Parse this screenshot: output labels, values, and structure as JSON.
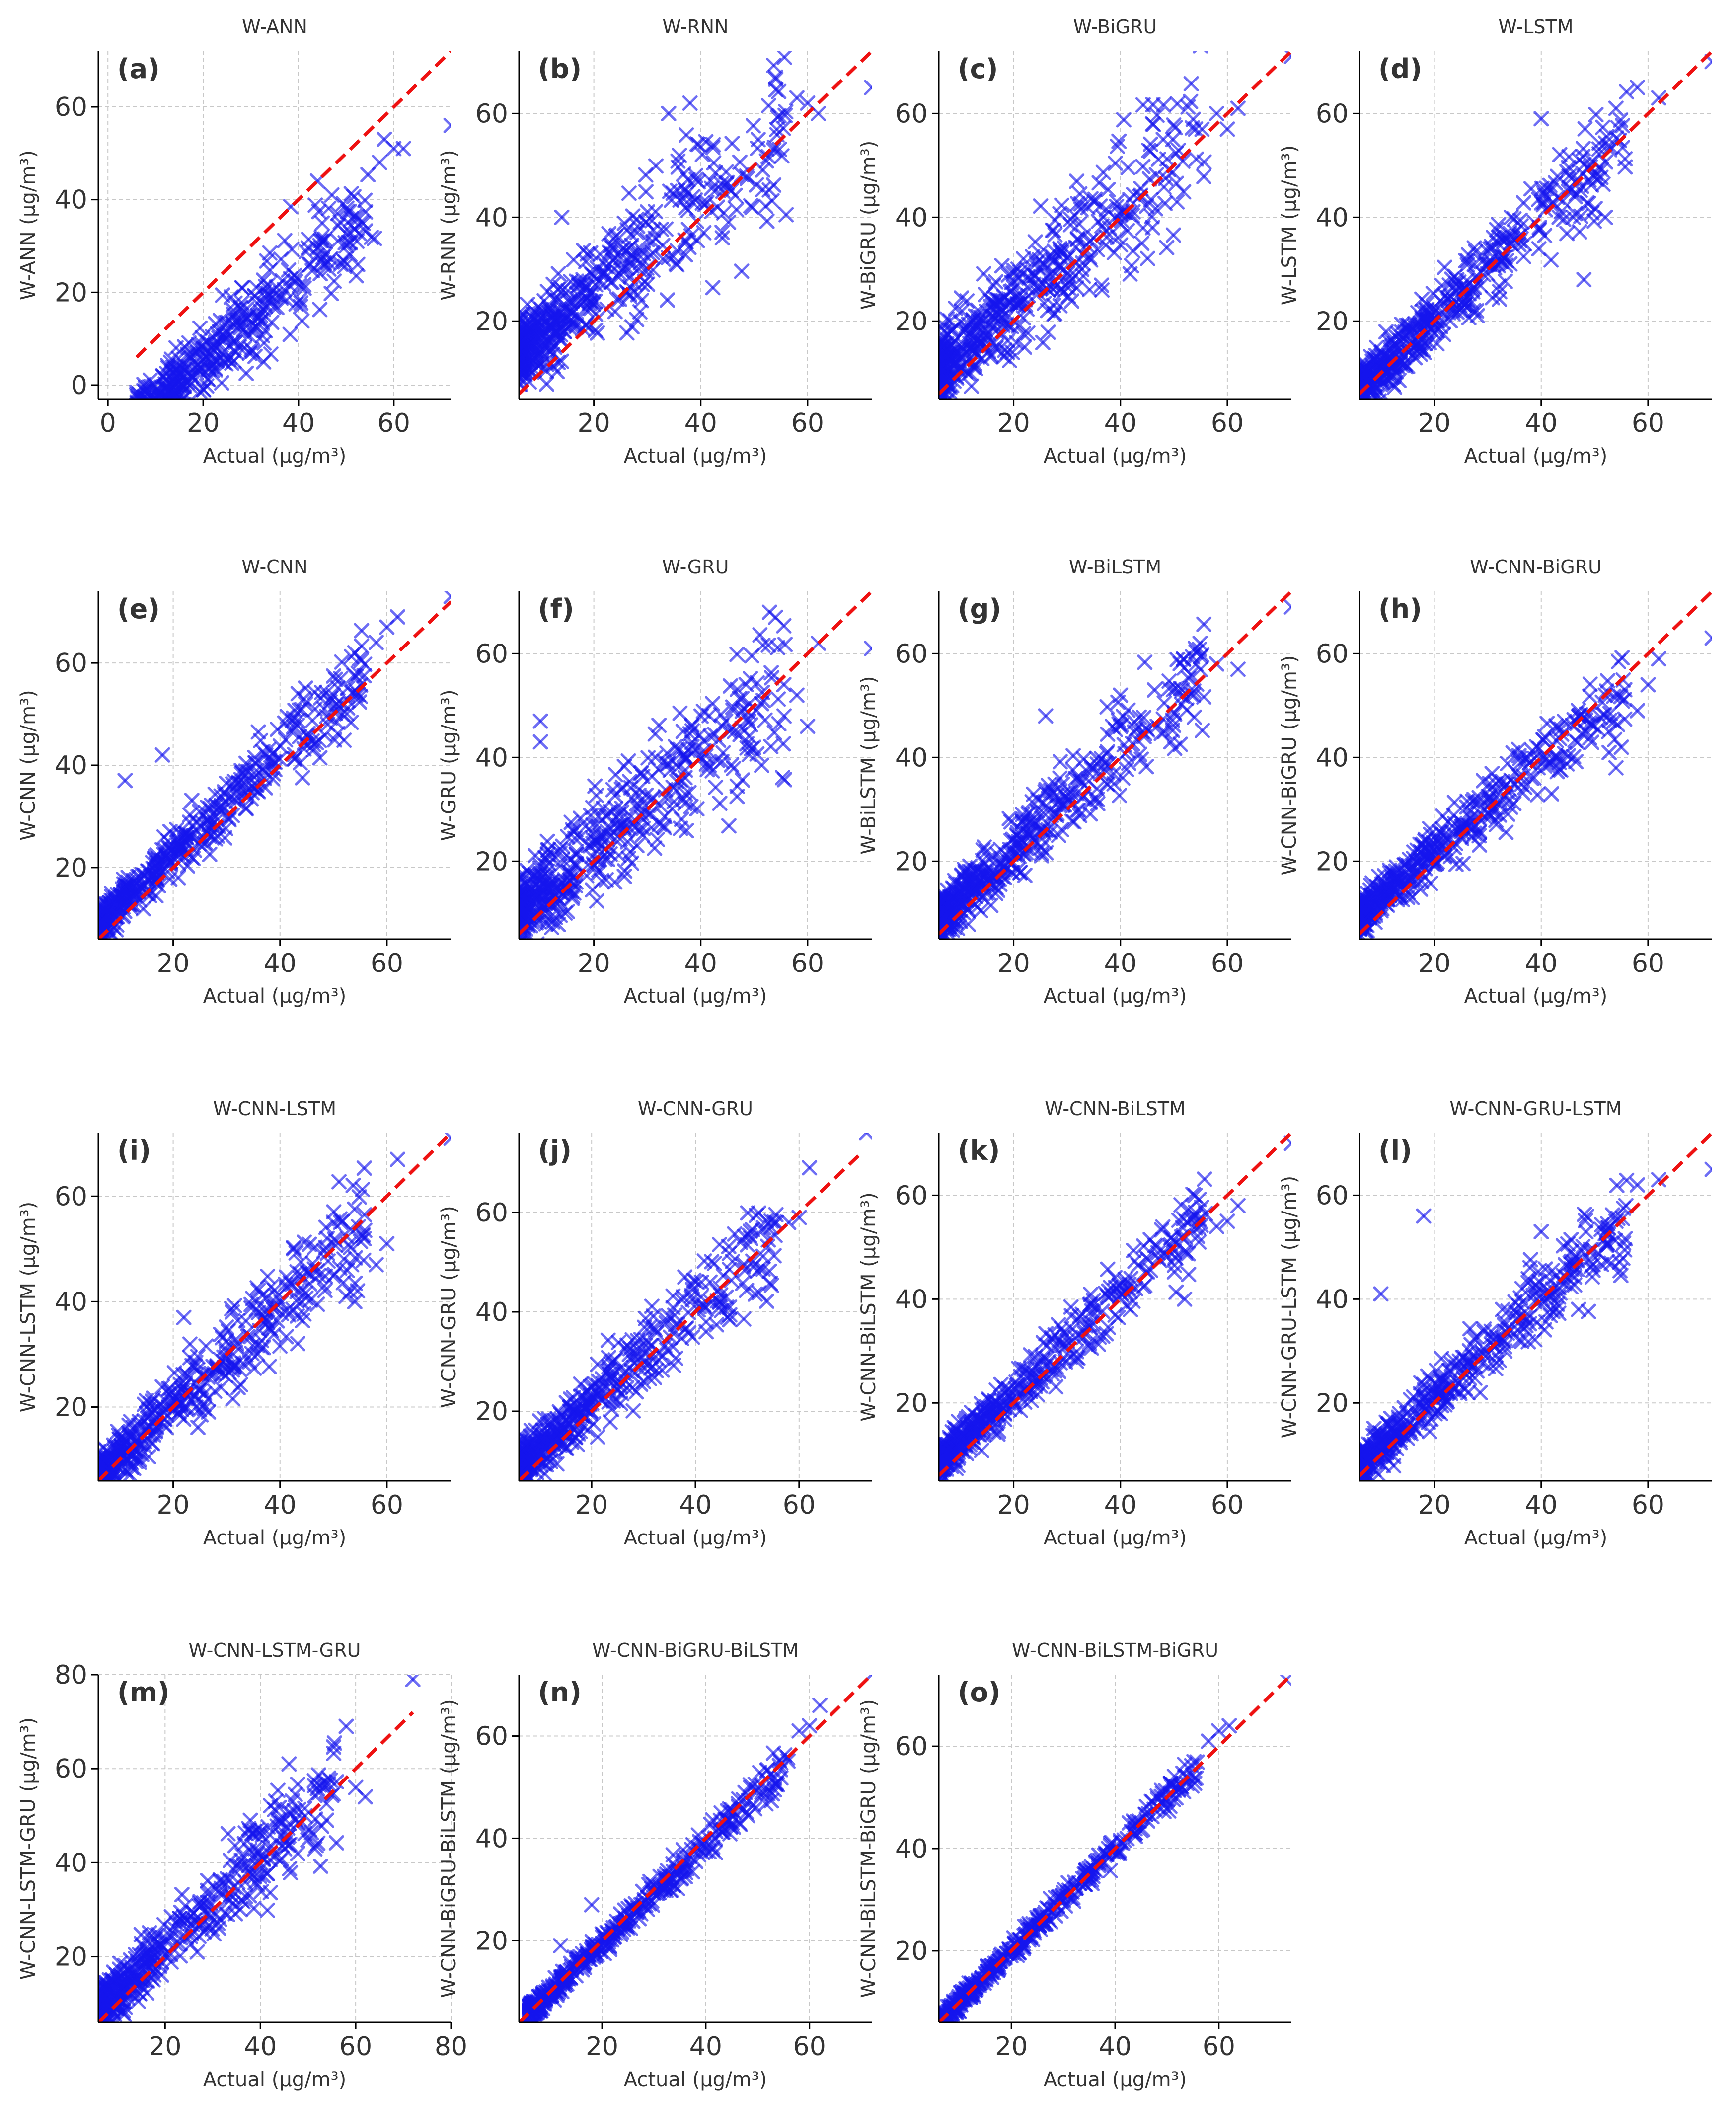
{
  "figure": {
    "marker": "x",
    "point_color": "#1515ee",
    "line_color": "#ee1111",
    "line_style": "dashed",
    "grid": true
  },
  "chart_data": [
    {
      "id": "a",
      "type": "scatter",
      "title": "W-ANN",
      "panel_label": "(a)",
      "xlabel": "Actual (µg/m³)",
      "ylabel": "W-ANN (µg/m³)",
      "xlim": [
        -2,
        72
      ],
      "ylim": [
        -3,
        72
      ],
      "xticks": [
        0,
        20,
        40,
        60
      ],
      "yticks": [
        0,
        20,
        40,
        60
      ],
      "ref_line": {
        "from": [
          6,
          6
        ],
        "to": [
          72,
          72
        ]
      },
      "noise": 5,
      "bias": -13,
      "scale": 0.92,
      "anchors": [
        [
          44,
          44
        ],
        [
          47,
          41
        ],
        [
          50,
          30
        ],
        [
          57,
          48
        ],
        [
          58,
          53
        ],
        [
          60,
          51
        ],
        [
          62,
          51
        ],
        [
          72,
          56
        ]
      ]
    },
    {
      "id": "b",
      "type": "scatter",
      "title": "W-RNN",
      "panel_label": "(b)",
      "xlabel": "Actual (µg/m³)",
      "ylabel": "W-RNN (µg/m³)",
      "xlim": [
        6,
        72
      ],
      "ylim": [
        5,
        72
      ],
      "xticks": [
        20,
        40,
        60
      ],
      "yticks": [
        20,
        40,
        60
      ],
      "ref_line": {
        "from": [
          6,
          6
        ],
        "to": [
          72,
          72
        ]
      },
      "noise": 6,
      "bias": 9,
      "scale": 0.85,
      "anchors": [
        [
          34,
          60
        ],
        [
          38,
          62
        ],
        [
          54,
          67
        ],
        [
          58,
          63
        ],
        [
          60,
          62
        ],
        [
          62,
          60
        ],
        [
          72,
          65
        ],
        [
          14,
          40
        ]
      ]
    },
    {
      "id": "c",
      "type": "scatter",
      "title": "W-BiGRU",
      "panel_label": "(c)",
      "xlabel": "Actual (µg/m³)",
      "ylabel": "W-BiGRU (µg/m³)",
      "xlim": [
        6,
        72
      ],
      "ylim": [
        5,
        72
      ],
      "xticks": [
        20,
        40,
        60
      ],
      "yticks": [
        20,
        40,
        60
      ],
      "ref_line": {
        "from": [
          6,
          6
        ],
        "to": [
          72,
          72
        ]
      },
      "noise": 6,
      "bias": 5,
      "scale": 0.93,
      "anchors": [
        [
          46,
          58
        ],
        [
          48,
          55
        ],
        [
          58,
          60
        ],
        [
          60,
          57
        ],
        [
          62,
          61
        ],
        [
          72,
          71
        ],
        [
          44,
          35
        ],
        [
          46,
          38
        ]
      ]
    },
    {
      "id": "d",
      "type": "scatter",
      "title": "W-LSTM",
      "panel_label": "(d)",
      "xlabel": "Actual (µg/m³)",
      "ylabel": "W-LSTM (µg/m³)",
      "xlim": [
        6,
        72
      ],
      "ylim": [
        5,
        72
      ],
      "xticks": [
        20,
        40,
        60
      ],
      "yticks": [
        20,
        40,
        60
      ],
      "ref_line": {
        "from": [
          6,
          6
        ],
        "to": [
          72,
          72
        ]
      },
      "noise": 4,
      "bias": 1,
      "scale": 0.97,
      "anchors": [
        [
          40,
          59
        ],
        [
          54,
          61
        ],
        [
          58,
          65
        ],
        [
          62,
          63
        ],
        [
          72,
          70
        ],
        [
          46,
          40
        ],
        [
          48,
          28
        ],
        [
          52,
          40
        ]
      ]
    },
    {
      "id": "e",
      "type": "scatter",
      "title": "W-CNN",
      "panel_label": "(e)",
      "xlabel": "Actual (µg/m³)",
      "ylabel": "W-CNN (µg/m³)",
      "xlim": [
        6,
        72
      ],
      "ylim": [
        6,
        74
      ],
      "xticks": [
        20,
        40,
        60
      ],
      "yticks": [
        20,
        40,
        60
      ],
      "ref_line": {
        "from": [
          6,
          6
        ],
        "to": [
          72,
          72
        ]
      },
      "noise": 3,
      "bias": 3,
      "scale": 0.98,
      "anchors": [
        [
          11,
          37
        ],
        [
          18,
          42
        ],
        [
          54,
          62
        ],
        [
          58,
          64
        ],
        [
          60,
          67
        ],
        [
          62,
          69
        ],
        [
          72,
          73
        ]
      ]
    },
    {
      "id": "f",
      "type": "scatter",
      "title": "W-GRU",
      "panel_label": "(f)",
      "xlabel": "Actual (µg/m³)",
      "ylabel": "W-GRU (µg/m³)",
      "xlim": [
        6,
        72
      ],
      "ylim": [
        5,
        72
      ],
      "xticks": [
        20,
        40,
        60
      ],
      "yticks": [
        20,
        40,
        60
      ],
      "ref_line": {
        "from": [
          6,
          6
        ],
        "to": [
          72,
          72
        ]
      },
      "noise": 6,
      "bias": 5,
      "scale": 0.88,
      "anchors": [
        [
          10,
          47
        ],
        [
          10,
          43
        ],
        [
          54,
          67
        ],
        [
          58,
          52
        ],
        [
          60,
          46
        ],
        [
          62,
          62
        ],
        [
          72,
          61
        ]
      ]
    },
    {
      "id": "g",
      "type": "scatter",
      "title": "W-BiLSTM",
      "panel_label": "(g)",
      "xlabel": "Actual (µg/m³)",
      "ylabel": "W-BiLSTM (µg/m³)",
      "xlim": [
        6,
        72
      ],
      "ylim": [
        5,
        72
      ],
      "xticks": [
        20,
        40,
        60
      ],
      "yticks": [
        20,
        40,
        60
      ],
      "ref_line": {
        "from": [
          6,
          6
        ],
        "to": [
          72,
          72
        ]
      },
      "noise": 4,
      "bias": 3,
      "scale": 0.95,
      "anchors": [
        [
          26,
          48
        ],
        [
          40,
          52
        ],
        [
          54,
          61
        ],
        [
          58,
          58
        ],
        [
          62,
          57
        ],
        [
          72,
          69
        ]
      ]
    },
    {
      "id": "h",
      "type": "scatter",
      "title": "W-CNN-BiGRU",
      "panel_label": "(h)",
      "xlabel": "Actual (µg/m³)",
      "ylabel": "W-CNN-BiGRU (µg/m³)",
      "xlim": [
        6,
        72
      ],
      "ylim": [
        5,
        72
      ],
      "xticks": [
        20,
        40,
        60
      ],
      "yticks": [
        20,
        40,
        60
      ],
      "ref_line": {
        "from": [
          6,
          6
        ],
        "to": [
          72,
          72
        ]
      },
      "noise": 3,
      "bias": 4,
      "scale": 0.88,
      "anchors": [
        [
          52,
          52
        ],
        [
          54,
          38
        ],
        [
          58,
          49
        ],
        [
          60,
          54
        ],
        [
          62,
          59
        ],
        [
          72,
          63
        ]
      ]
    },
    {
      "id": "i",
      "type": "scatter",
      "title": "W-CNN-LSTM",
      "panel_label": "(i)",
      "xlabel": "Actual (µg/m³)",
      "ylabel": "W-CNN-LSTM (µg/m³)",
      "xlim": [
        6,
        72
      ],
      "ylim": [
        6,
        72
      ],
      "xticks": [
        20,
        40,
        60
      ],
      "yticks": [
        20,
        40,
        60
      ],
      "ref_line": {
        "from": [
          6,
          6
        ],
        "to": [
          72,
          72
        ]
      },
      "noise": 4,
      "bias": 1,
      "scale": 0.97,
      "anchors": [
        [
          22,
          37
        ],
        [
          54,
          40
        ],
        [
          58,
          47
        ],
        [
          60,
          51
        ],
        [
          62,
          67
        ],
        [
          72,
          71
        ]
      ]
    },
    {
      "id": "j",
      "type": "scatter",
      "title": "W-CNN-GRU",
      "panel_label": "(j)",
      "xlabel": "Actual (µg/m³)",
      "ylabel": "W-CNN-GRU (µg/m³)",
      "xlim": [
        6,
        74
      ],
      "ylim": [
        6,
        76
      ],
      "xticks": [
        20,
        40,
        60
      ],
      "yticks": [
        20,
        40,
        60
      ],
      "ref_line": {
        "from": [
          6,
          6
        ],
        "to": [
          72,
          72
        ]
      },
      "noise": 4,
      "bias": 3,
      "scale": 0.93,
      "anchors": [
        [
          58,
          58
        ],
        [
          60,
          59
        ],
        [
          62,
          69
        ],
        [
          73,
          76
        ]
      ]
    },
    {
      "id": "k",
      "type": "scatter",
      "title": "W-CNN-BiLSTM",
      "panel_label": "(k)",
      "xlabel": "Actual (µg/m³)",
      "ylabel": "W-CNN-BiLSTM (µg/m³)",
      "xlim": [
        6,
        72
      ],
      "ylim": [
        5,
        72
      ],
      "xticks": [
        20,
        40,
        60
      ],
      "yticks": [
        20,
        40,
        60
      ],
      "ref_line": {
        "from": [
          6,
          6
        ],
        "to": [
          72,
          72
        ]
      },
      "noise": 3,
      "bias": 3,
      "scale": 0.95,
      "anchors": [
        [
          52,
          40
        ],
        [
          54,
          56
        ],
        [
          58,
          54
        ],
        [
          60,
          55
        ],
        [
          62,
          58
        ],
        [
          72,
          70
        ]
      ]
    },
    {
      "id": "l",
      "type": "scatter",
      "title": "W-CNN-GRU-LSTM",
      "panel_label": "(l)",
      "xlabel": "Actual (µg/m³)",
      "ylabel": "W-CNN-GRU-LSTM (µg/m³)",
      "xlim": [
        6,
        72
      ],
      "ylim": [
        5,
        72
      ],
      "xticks": [
        20,
        40,
        60
      ],
      "yticks": [
        20,
        40,
        60
      ],
      "ref_line": {
        "from": [
          6,
          6
        ],
        "to": [
          72,
          72
        ]
      },
      "noise": 3,
      "bias": 2,
      "scale": 0.95,
      "anchors": [
        [
          10,
          41
        ],
        [
          18,
          56
        ],
        [
          40,
          53
        ],
        [
          54,
          55
        ],
        [
          58,
          62
        ],
        [
          62,
          63
        ],
        [
          72,
          65
        ]
      ]
    },
    {
      "id": "m",
      "type": "scatter",
      "title": "W-CNN-LSTM-GRU",
      "panel_label": "(m)",
      "xlabel": "Actual (µg/m³)",
      "ylabel": "W-CNN-LSTM-GRU (µg/m³)",
      "xlim": [
        6,
        80
      ],
      "ylim": [
        6,
        80
      ],
      "xticks": [
        20,
        40,
        60,
        80
      ],
      "yticks": [
        20,
        40,
        60,
        80
      ],
      "ref_line": {
        "from": [
          6,
          6
        ],
        "to": [
          72,
          72
        ]
      },
      "noise": 4,
      "bias": 3,
      "scale": 0.95,
      "anchors": [
        [
          46,
          61
        ],
        [
          58,
          69
        ],
        [
          60,
          56
        ],
        [
          62,
          54
        ],
        [
          72,
          79
        ]
      ]
    },
    {
      "id": "n",
      "type": "scatter",
      "title": "W-CNN-BiGRU-BiLSTM",
      "panel_label": "(n)",
      "xlabel": "Actual (µg/m³)",
      "ylabel": "W-CNN-BiGRU-BiLSTM (µg/m³)",
      "xlim": [
        4,
        72
      ],
      "ylim": [
        4,
        72
      ],
      "xticks": [
        20,
        40,
        60
      ],
      "yticks": [
        20,
        40,
        60
      ],
      "ref_line": {
        "from": [
          4,
          4
        ],
        "to": [
          72,
          72
        ]
      },
      "noise": 1.5,
      "bias": 0,
      "scale": 0.98,
      "anchors": [
        [
          12,
          19
        ],
        [
          18,
          27
        ],
        [
          58,
          61
        ],
        [
          60,
          62
        ],
        [
          62,
          66
        ],
        [
          72,
          72
        ]
      ]
    },
    {
      "id": "o",
      "type": "scatter",
      "title": "W-CNN-BiLSTM-BiGRU",
      "panel_label": "(o)",
      "xlabel": "Actual (µg/m³)",
      "ylabel": "W-CNN-BiLSTM-BiGRU (µg/m³)",
      "xlim": [
        6,
        74
      ],
      "ylim": [
        6,
        74
      ],
      "xticks": [
        20,
        40,
        60
      ],
      "yticks": [
        20,
        40,
        60
      ],
      "ref_line": {
        "from": [
          6,
          6
        ],
        "to": [
          74,
          74
        ]
      },
      "noise": 1.2,
      "bias": 0,
      "scale": 1.0,
      "anchors": [
        [
          54,
          54
        ],
        [
          58,
          61
        ],
        [
          60,
          63
        ],
        [
          62,
          64
        ],
        [
          73,
          73
        ]
      ]
    }
  ]
}
